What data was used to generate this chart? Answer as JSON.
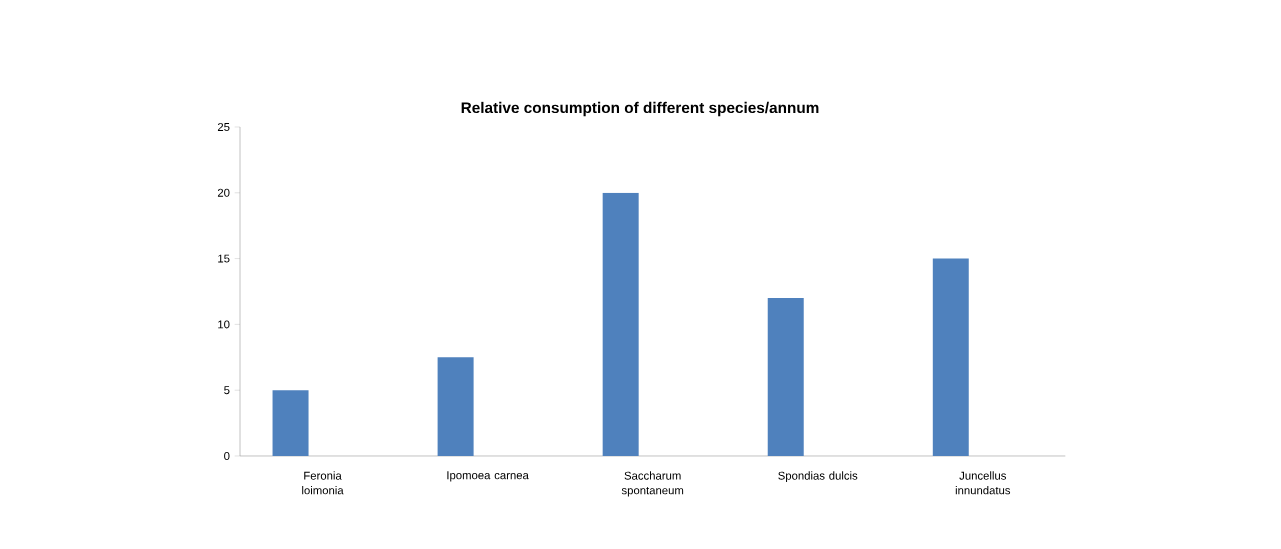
{
  "chart_data": {
    "type": "bar",
    "title": "Relative consumption of different species/annum",
    "categories": [
      "Feronia loimonia",
      "Ipomoea carnea",
      "Saccharum spontaneum",
      "Spondias dulcis",
      "Juncellus innundatus"
    ],
    "values": [
      5,
      7.5,
      20,
      12,
      15
    ],
    "color": "#4f81bd",
    "ylim": [
      0,
      25
    ],
    "yticks": [
      0,
      5,
      10,
      15,
      20,
      25
    ],
    "grid": false
  }
}
